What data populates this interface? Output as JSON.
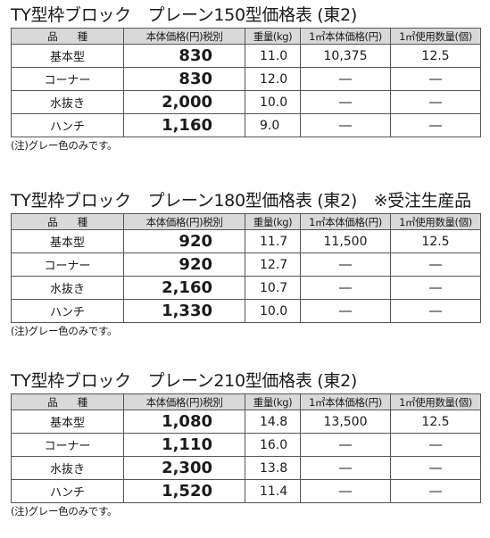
{
  "headers": {
    "name": "品　　種",
    "price": "本体価格(円)税別",
    "weight": "重量(kg)",
    "unit_price": "1㎡本体価格(円)",
    "quantity": "1㎡使用数量(個)"
  },
  "tables": [
    {
      "title": "TY型枠ブロック　プレーン150型価格表 (東2)",
      "rows": [
        {
          "name": "基本型",
          "price": "830",
          "weight": "11.0",
          "unit_price": "10,375",
          "quantity": "12.5"
        },
        {
          "name": "コーナー",
          "price": "830",
          "weight": "12.0",
          "unit_price": "―",
          "quantity": "―"
        },
        {
          "name": "水抜き",
          "price": "2,000",
          "weight": "10.0",
          "unit_price": "―",
          "quantity": "―"
        },
        {
          "name": "ハンチ",
          "price": "1,160",
          "weight": "9.0",
          "unit_price": "―",
          "quantity": "―"
        }
      ],
      "note": "(注)グレー色のみです。"
    },
    {
      "title": "TY型枠ブロック　プレーン180型価格表 (東2)　※受注生産品",
      "rows": [
        {
          "name": "基本型",
          "price": "920",
          "weight": "11.7",
          "unit_price": "11,500",
          "quantity": "12.5"
        },
        {
          "name": "コーナー",
          "price": "920",
          "weight": "12.7",
          "unit_price": "―",
          "quantity": "―"
        },
        {
          "name": "水抜き",
          "price": "2,160",
          "weight": "10.7",
          "unit_price": "―",
          "quantity": "―"
        },
        {
          "name": "ハンチ",
          "price": "1,330",
          "weight": "10.0",
          "unit_price": "―",
          "quantity": "―"
        }
      ],
      "note": "(注)グレー色のみです。"
    },
    {
      "title": "TY型枠ブロック　プレーン210型価格表 (東2)",
      "rows": [
        {
          "name": "基本型",
          "price": "1,080",
          "weight": "14.8",
          "unit_price": "13,500",
          "quantity": "12.5"
        },
        {
          "name": "コーナー",
          "price": "1,110",
          "weight": "16.0",
          "unit_price": "―",
          "quantity": "―"
        },
        {
          "name": "水抜き",
          "price": "2,300",
          "weight": "13.8",
          "unit_price": "―",
          "quantity": "―"
        },
        {
          "name": "ハンチ",
          "price": "1,520",
          "weight": "11.4",
          "unit_price": "―",
          "quantity": "―"
        }
      ],
      "note": "(注)グレー色のみです。"
    }
  ]
}
